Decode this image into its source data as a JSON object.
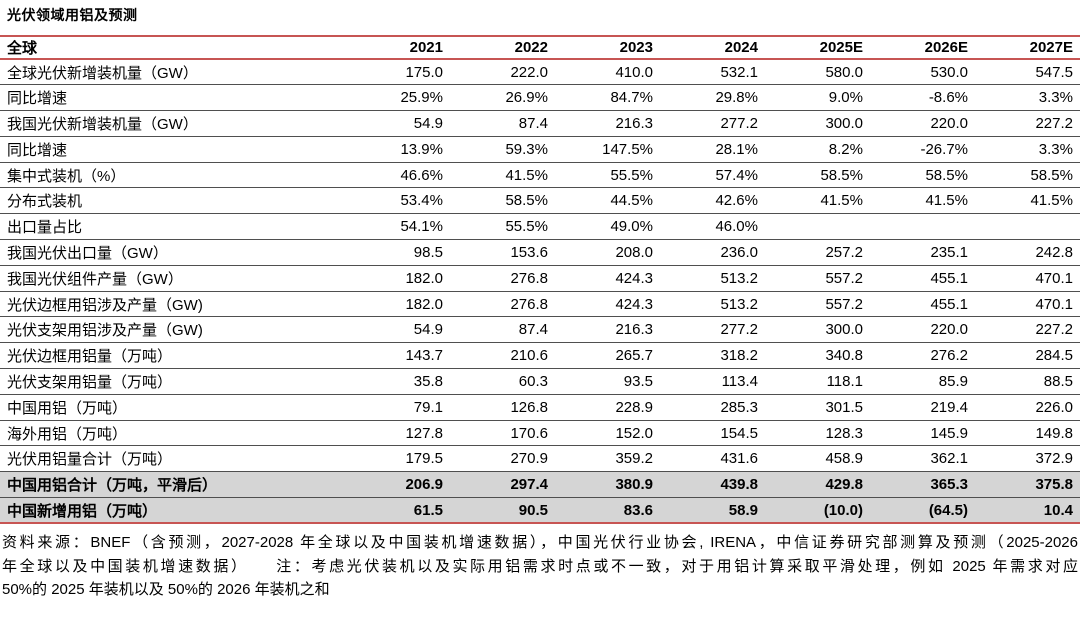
{
  "title": "光伏领域用铝及预测",
  "chart_data": {
    "type": "table",
    "title": "光伏领域用铝及预测",
    "columns": [
      "全球",
      "2021",
      "2022",
      "2023",
      "2024",
      "2025E",
      "2026E",
      "2027E"
    ],
    "rows": [
      {
        "label": "全球光伏新增装机量（GW）",
        "values": [
          "175.0",
          "222.0",
          "410.0",
          "532.1",
          "580.0",
          "530.0",
          "547.5"
        ],
        "highlight": false
      },
      {
        "label": "同比增速",
        "values": [
          "25.9%",
          "26.9%",
          "84.7%",
          "29.8%",
          "9.0%",
          "-8.6%",
          "3.3%"
        ],
        "highlight": false
      },
      {
        "label": "我国光伏新增装机量（GW）",
        "values": [
          "54.9",
          "87.4",
          "216.3",
          "277.2",
          "300.0",
          "220.0",
          "227.2"
        ],
        "highlight": false
      },
      {
        "label": "同比增速",
        "values": [
          "13.9%",
          "59.3%",
          "147.5%",
          "28.1%",
          "8.2%",
          "-26.7%",
          "3.3%"
        ],
        "highlight": false
      },
      {
        "label": "集中式装机（%）",
        "values": [
          "46.6%",
          "41.5%",
          "55.5%",
          "57.4%",
          "58.5%",
          "58.5%",
          "58.5%"
        ],
        "highlight": false
      },
      {
        "label": "分布式装机",
        "values": [
          "53.4%",
          "58.5%",
          "44.5%",
          "42.6%",
          "41.5%",
          "41.5%",
          "41.5%"
        ],
        "highlight": false
      },
      {
        "label": "出口量占比",
        "values": [
          "54.1%",
          "55.5%",
          "49.0%",
          "46.0%",
          "",
          "",
          ""
        ],
        "highlight": false
      },
      {
        "label": "我国光伏出口量（GW）",
        "values": [
          "98.5",
          "153.6",
          "208.0",
          "236.0",
          "257.2",
          "235.1",
          "242.8"
        ],
        "highlight": false
      },
      {
        "label": "我国光伏组件产量（GW）",
        "values": [
          "182.0",
          "276.8",
          "424.3",
          "513.2",
          "557.2",
          "455.1",
          "470.1"
        ],
        "highlight": false
      },
      {
        "label": "光伏边框用铝涉及产量（GW)",
        "values": [
          "182.0",
          "276.8",
          "424.3",
          "513.2",
          "557.2",
          "455.1",
          "470.1"
        ],
        "highlight": false
      },
      {
        "label": "光伏支架用铝涉及产量（GW)",
        "values": [
          "54.9",
          "87.4",
          "216.3",
          "277.2",
          "300.0",
          "220.0",
          "227.2"
        ],
        "highlight": false
      },
      {
        "label": "光伏边框用铝量（万吨）",
        "values": [
          "143.7",
          "210.6",
          "265.7",
          "318.2",
          "340.8",
          "276.2",
          "284.5"
        ],
        "highlight": false
      },
      {
        "label": "光伏支架用铝量（万吨）",
        "values": [
          "35.8",
          "60.3",
          "93.5",
          "113.4",
          "118.1",
          "85.9",
          "88.5"
        ],
        "highlight": false
      },
      {
        "label": "中国用铝（万吨）",
        "values": [
          "79.1",
          "126.8",
          "228.9",
          "285.3",
          "301.5",
          "219.4",
          "226.0"
        ],
        "highlight": false
      },
      {
        "label": "海外用铝（万吨）",
        "values": [
          "127.8",
          "170.6",
          "152.0",
          "154.5",
          "128.3",
          "145.9",
          "149.8"
        ],
        "highlight": false
      },
      {
        "label": "光伏用铝量合计（万吨）",
        "values": [
          "179.5",
          "270.9",
          "359.2",
          "431.6",
          "458.9",
          "362.1",
          "372.9"
        ],
        "highlight": false
      },
      {
        "label": "中国用铝合计（万吨，平滑后）",
        "values": [
          "206.9",
          "297.4",
          "380.9",
          "439.8",
          "429.8",
          "365.3",
          "375.8"
        ],
        "highlight": true
      },
      {
        "label": "中国新增用铝（万吨）",
        "values": [
          "61.5",
          "90.5",
          "83.6",
          "58.9",
          "(10.0)",
          "(64.5)",
          "10.4"
        ],
        "highlight": true
      }
    ]
  },
  "footer": {
    "line1": "资料来源：BNEF（含预测，2027-2028 年全球以及中国装机增速数据），中国光伏行业协会, IRENA，中信证券研究部测算及预测（2025-2026",
    "line2": "年全球以及中国装机增速数据）　　注：考虑光伏装机以及实际用铝需求时点或不一致，对于用铝计算采取平滑处理，例如 2025 年需求对应",
    "line3": "50%的 2025 年装机以及 50%的 2026 年装机之和"
  },
  "colors": {
    "accent_line_red": "#c75553",
    "row_separator_gray": "#4f4f4f",
    "highlight_row_bg": "#d5d5d5",
    "text": "#000000",
    "background": "#ffffff"
  }
}
